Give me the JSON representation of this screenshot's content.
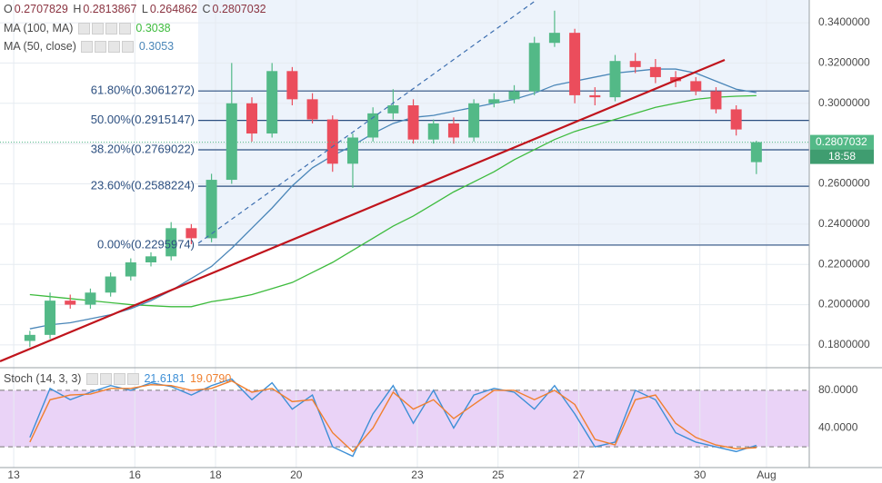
{
  "chart_data": {
    "type": "candlestick",
    "ohlc_labels": [
      "O",
      "H",
      "L",
      "C"
    ],
    "x": [
      13.4,
      13.9,
      14.4,
      14.9,
      15.4,
      15.9,
      16.4,
      16.9,
      17.4,
      17.9,
      18.4,
      18.9,
      19.4,
      19.9,
      20.4,
      20.9,
      21.4,
      21.9,
      22.4,
      22.9,
      23.4,
      23.9,
      24.4,
      24.9,
      25.4,
      25.9,
      26.4,
      26.9,
      27.4,
      27.9,
      28.4,
      28.9,
      29.4,
      29.9,
      30.4,
      30.9,
      31.4
    ],
    "open": [
      0.182,
      0.185,
      0.202,
      0.2,
      0.206,
      0.214,
      0.221,
      0.224,
      0.238,
      0.233,
      0.262,
      0.3,
      0.285,
      0.316,
      0.302,
      0.292,
      0.27,
      0.283,
      0.295,
      0.299,
      0.282,
      0.29,
      0.283,
      0.3,
      0.302,
      0.306,
      0.33,
      0.335,
      0.304,
      0.303,
      0.321,
      0.318,
      0.313,
      0.311,
      0.306,
      0.297,
      0.2707829
    ],
    "high": [
      0.187,
      0.206,
      0.205,
      0.208,
      0.216,
      0.223,
      0.226,
      0.241,
      0.24,
      0.265,
      0.32,
      0.303,
      0.32,
      0.318,
      0.305,
      0.294,
      0.285,
      0.298,
      0.307,
      0.302,
      0.292,
      0.293,
      0.302,
      0.305,
      0.309,
      0.333,
      0.346,
      0.337,
      0.308,
      0.324,
      0.325,
      0.322,
      0.316,
      0.313,
      0.308,
      0.299,
      0.2813867
    ],
    "low": [
      0.179,
      0.183,
      0.198,
      0.198,
      0.204,
      0.212,
      0.219,
      0.222,
      0.23,
      0.231,
      0.26,
      0.281,
      0.283,
      0.299,
      0.29,
      0.266,
      0.258,
      0.281,
      0.292,
      0.28,
      0.28,
      0.28,
      0.281,
      0.298,
      0.3,
      0.304,
      0.328,
      0.3,
      0.299,
      0.301,
      0.315,
      0.31,
      0.308,
      0.304,
      0.295,
      0.284,
      0.264862
    ],
    "close": [
      0.185,
      0.202,
      0.2,
      0.206,
      0.214,
      0.221,
      0.224,
      0.238,
      0.233,
      0.262,
      0.3,
      0.285,
      0.316,
      0.302,
      0.292,
      0.27,
      0.283,
      0.295,
      0.299,
      0.282,
      0.29,
      0.283,
      0.3,
      0.302,
      0.306,
      0.33,
      0.335,
      0.304,
      0.303,
      0.321,
      0.318,
      0.313,
      0.311,
      0.306,
      0.297,
      0.287,
      0.2807032
    ],
    "colors": {
      "up": "#53b987",
      "down": "#eb4d5c"
    },
    "xlim": [
      12.66,
      32.71
    ],
    "xticks": [
      13,
      16,
      18,
      20,
      23,
      25,
      27,
      30,
      {
        "value": 31.65,
        "label": "Aug"
      }
    ],
    "ylim": [
      0.1687,
      0.3513
    ],
    "yticks": [
      {
        "value": 0.34,
        "label": "0.3400000"
      },
      {
        "value": 0.32,
        "label": "0.3200000"
      },
      {
        "value": 0.3,
        "label": "0.3000000"
      },
      {
        "value": 0.28,
        "label": "0.2800000"
      },
      {
        "value": 0.26,
        "label": "0.2600000"
      },
      {
        "value": 0.24,
        "label": "0.2400000"
      },
      {
        "value": 0.22,
        "label": "0.2200000"
      },
      {
        "value": 0.2,
        "label": "0.2000000"
      },
      {
        "value": 0.18,
        "label": "0.1800000"
      }
    ],
    "grid": true,
    "countdown": "18:58",
    "moving_averages": [
      {
        "name": "MA (100, MA)",
        "color": "#3dbb3d",
        "values": [
          0.205,
          0.204,
          0.203,
          0.202,
          0.201,
          0.2,
          0.1995,
          0.199,
          0.199,
          0.2015,
          0.203,
          0.205,
          0.208,
          0.211,
          0.216,
          0.221,
          0.227,
          0.233,
          0.239,
          0.244,
          0.25,
          0.256,
          0.261,
          0.266,
          0.272,
          0.277,
          0.282,
          0.286,
          0.289,
          0.292,
          0.295,
          0.298,
          0.3,
          0.302,
          0.303,
          0.3035,
          0.3038
        ]
      },
      {
        "name": "MA (50, close)",
        "color": "#4a86b8",
        "values": [
          0.188,
          0.19,
          0.191,
          0.193,
          0.195,
          0.198,
          0.202,
          0.207,
          0.213,
          0.219,
          0.228,
          0.238,
          0.248,
          0.259,
          0.268,
          0.274,
          0.279,
          0.285,
          0.29,
          0.293,
          0.294,
          0.296,
          0.298,
          0.3,
          0.302,
          0.305,
          0.309,
          0.311,
          0.313,
          0.315,
          0.316,
          0.317,
          0.317,
          0.315,
          0.311,
          0.307,
          0.3053
        ]
      }
    ],
    "fibonacci": [
      {
        "value": 0.3061272,
        "label": "61.80%(0.3061272)"
      },
      {
        "value": 0.2915147,
        "label": "50.00%(0.2915147)"
      },
      {
        "value": 0.2769022,
        "label": "38.20%(0.2769022)"
      },
      {
        "value": 0.2588224,
        "label": "23.60%(0.2588224)"
      },
      {
        "value": 0.2295974,
        "label": "0.00%(0.2295974)"
      }
    ],
    "stochastic": {
      "name": "Stoch (14, 3, 3)",
      "ylim": [
        -2,
        104
      ],
      "yticks": [
        {
          "value": 80,
          "label": "80.0000"
        },
        {
          "value": 40,
          "label": "40.0000"
        }
      ],
      "bands": [
        80,
        20
      ],
      "series": [
        {
          "color": "#3d8fd6",
          "values": [
            30,
            82,
            70,
            78,
            85,
            80,
            88,
            84,
            75,
            85,
            92,
            70,
            88,
            60,
            75,
            20,
            10,
            55,
            85,
            45,
            80,
            40,
            75,
            82,
            78,
            60,
            85,
            55,
            20,
            25,
            80,
            70,
            35,
            25,
            20,
            15,
            21.6181
          ]
        },
        {
          "color": "#f07f2e",
          "values": [
            25,
            70,
            75,
            76,
            82,
            82,
            86,
            85,
            80,
            82,
            90,
            78,
            82,
            68,
            70,
            35,
            15,
            40,
            78,
            60,
            70,
            50,
            65,
            80,
            80,
            70,
            80,
            65,
            28,
            22,
            70,
            75,
            45,
            30,
            22,
            18,
            19.079
          ],
          "value_labels": [
            null,
            null,
            null,
            null,
            null,
            null,
            null,
            null,
            null,
            null,
            null,
            null,
            null,
            null,
            null,
            null,
            null,
            null,
            null,
            null,
            null,
            null,
            null,
            null,
            null,
            null,
            null,
            null,
            null,
            null,
            null,
            null,
            null,
            null,
            null,
            null,
            "19.0790"
          ]
        }
      ]
    }
  }
}
